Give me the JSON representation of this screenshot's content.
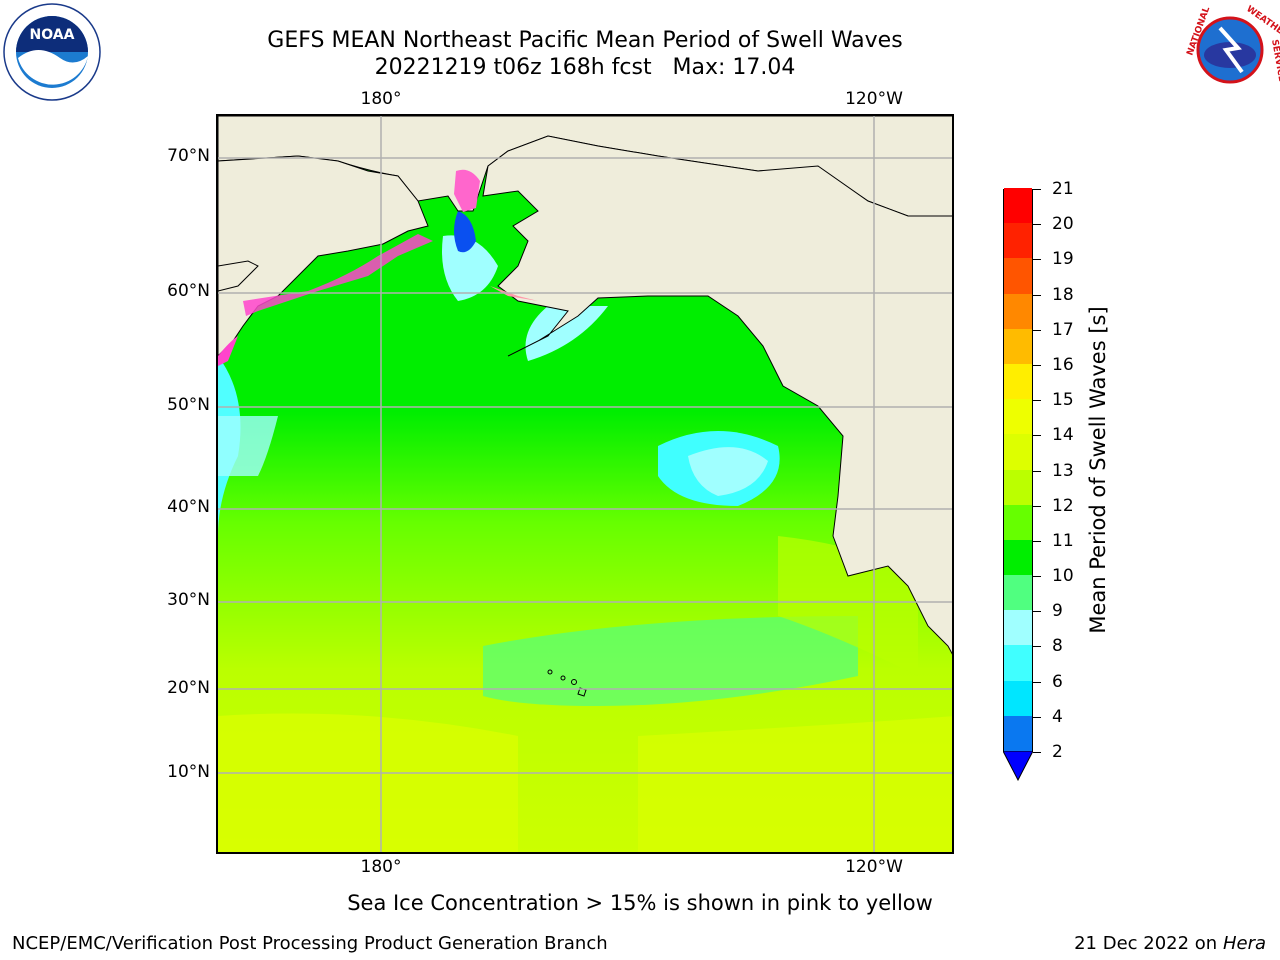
{
  "title": {
    "line1": "GEFS MEAN Northeast Pacific Mean Period of Swell Waves",
    "line2": "20221219 t06z 168h fcst   Max: 17.04"
  },
  "map": {
    "lat_labels": [
      "70°N",
      "60°N",
      "50°N",
      "40°N",
      "30°N",
      "20°N",
      "10°N"
    ],
    "lon_labels_top": [
      "180°",
      "120°W"
    ],
    "lon_labels_bottom": [
      "180°",
      "120°W"
    ],
    "land_color": "#efeddb",
    "grid_color": "#b0b0b0"
  },
  "colorbar": {
    "label": "Mean Period of Swell Waves [s]",
    "ticks": [
      "2",
      "4",
      "6",
      "8",
      "9",
      "10",
      "11",
      "12",
      "13",
      "14",
      "15",
      "16",
      "17",
      "18",
      "19",
      "20",
      "21"
    ],
    "colors": [
      "#0000ff",
      "#0a78f0",
      "#00e6ff",
      "#40ffff",
      "#a0ffff",
      "#50ff80",
      "#00ee00",
      "#66ff00",
      "#bbff00",
      "#ddff00",
      "#eeff00",
      "#ffee00",
      "#ffbb00",
      "#ff8800",
      "#ff5500",
      "#ff2200",
      "#ff0000"
    ]
  },
  "footer": {
    "note": "Sea Ice Concentration > 15% is shown in pink to yellow",
    "credit": "NCEP/EMC/Verification Post Processing Product Generation Branch",
    "date": "21 Dec 2022 on",
    "host": "Hera"
  },
  "logos": {
    "noaa": "NOAA",
    "noaa_ring": "NATIONAL OCEANIC AND ATMOSPHERIC ADMINISTRATION · U.S. DEPARTMENT OF COMMERCE",
    "nws_ring": "NATIONAL WEATHER SERVICE"
  }
}
